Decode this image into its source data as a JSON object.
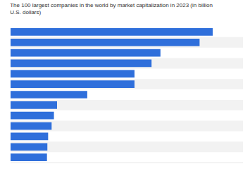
{
  "chart_data": {
    "type": "bar",
    "orientation": "horizontal",
    "title": "The 100 largest companies in the world by market capitalization in 2023 (in billion U.S. dollars)",
    "categories": [
      null,
      null,
      null,
      null,
      null,
      null,
      null,
      null,
      null,
      null,
      null,
      null,
      null
    ],
    "values": [
      2610,
      2440,
      1935,
      1820,
      1600,
      1600,
      990,
      600,
      560,
      530,
      485,
      475,
      470
    ],
    "color": "#2f6fdb",
    "xlim": [
      0,
      3000
    ],
    "grid": false,
    "tick_labels": false
  }
}
